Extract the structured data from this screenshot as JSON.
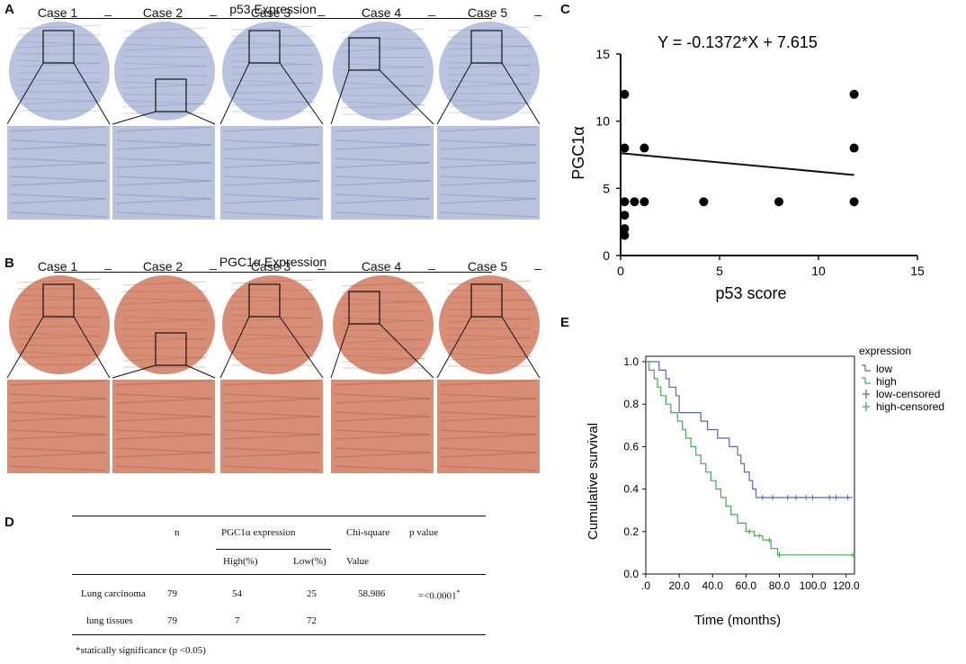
{
  "panels": {
    "a_label": "A",
    "b_label": "B",
    "c_label": "C",
    "d_label": "D",
    "e_label": "E"
  },
  "panel_a": {
    "title": "p53  Expression",
    "cases": [
      "Case 1",
      "Case 2",
      "Case 3",
      "Case 4",
      "Case 5"
    ],
    "stain_color": "#b9c3de"
  },
  "panel_b": {
    "title": "PGC1α Expression",
    "cases": [
      "Case 1",
      "Case 2",
      "Case 3",
      "Case 4",
      "Case 5"
    ],
    "stain_color": "#d88e76"
  },
  "chart_data": [
    {
      "id": "C",
      "type": "scatter",
      "title": "Y = -0.1372*X + 7.615",
      "xlabel": "p53 score",
      "ylabel": "PGC1α",
      "xlim": [
        0,
        15
      ],
      "ylim": [
        0,
        15
      ],
      "xticks": [
        0,
        5,
        10,
        15
      ],
      "yticks": [
        0,
        5,
        10,
        15
      ],
      "points": [
        [
          0.2,
          12
        ],
        [
          0.2,
          8
        ],
        [
          0.2,
          4
        ],
        [
          0.2,
          3
        ],
        [
          0.2,
          2
        ],
        [
          0.2,
          1.5
        ],
        [
          0.7,
          4
        ],
        [
          1.2,
          8
        ],
        [
          1.2,
          4
        ],
        [
          4.2,
          4
        ],
        [
          8,
          4
        ],
        [
          11.8,
          12
        ],
        [
          11.8,
          8
        ],
        [
          11.8,
          4
        ]
      ],
      "regression": {
        "slope": -0.1372,
        "intercept": 7.615,
        "x_range": [
          0,
          11.8
        ]
      }
    },
    {
      "id": "E",
      "type": "line",
      "xlabel": "Time (months)",
      "ylabel": "Cumulative survival",
      "xlim": [
        0,
        125
      ],
      "ylim": [
        0,
        1.0
      ],
      "xtick_labels": [
        ".0",
        "20.0",
        "40.0",
        "60.0",
        "80.0",
        "100.0",
        "120.0"
      ],
      "xtick_values": [
        0,
        20,
        40,
        60,
        80,
        100,
        120
      ],
      "ytick_labels": [
        "0.0",
        "0.2",
        "0.4",
        "0.6",
        "0.8",
        "1.0"
      ],
      "ytick_values": [
        0,
        0.2,
        0.4,
        0.6,
        0.8,
        1.0
      ],
      "legend_title": "expression",
      "legend": [
        {
          "label": "low",
          "style": "step",
          "color": "#5566bb"
        },
        {
          "label": "high",
          "style": "step",
          "color": "#44aa55"
        },
        {
          "label": "low-censored",
          "style": "cross",
          "color": "#5566bb"
        },
        {
          "label": "high-censored",
          "style": "cross",
          "color": "#44aa55"
        }
      ],
      "series": [
        {
          "name": "low",
          "color": "#5566bb",
          "steps": [
            [
              0,
              1.0
            ],
            [
              8,
              1.0
            ],
            [
              8,
              0.96
            ],
            [
              12,
              0.96
            ],
            [
              12,
              0.92
            ],
            [
              14,
              0.92
            ],
            [
              14,
              0.88
            ],
            [
              18,
              0.88
            ],
            [
              18,
              0.84
            ],
            [
              20,
              0.84
            ],
            [
              20,
              0.76
            ],
            [
              33,
              0.76
            ],
            [
              33,
              0.72
            ],
            [
              37,
              0.72
            ],
            [
              37,
              0.68
            ],
            [
              43,
              0.68
            ],
            [
              43,
              0.64
            ],
            [
              50,
              0.64
            ],
            [
              50,
              0.6
            ],
            [
              55,
              0.6
            ],
            [
              55,
              0.56
            ],
            [
              57,
              0.56
            ],
            [
              57,
              0.52
            ],
            [
              59,
              0.52
            ],
            [
              59,
              0.48
            ],
            [
              62,
              0.48
            ],
            [
              62,
              0.44
            ],
            [
              64,
              0.44
            ],
            [
              64,
              0.4
            ],
            [
              66,
              0.4
            ],
            [
              66,
              0.36
            ],
            [
              124,
              0.36
            ]
          ],
          "censored": [
            [
              70,
              0.36
            ],
            [
              76,
              0.36
            ],
            [
              85,
              0.36
            ],
            [
              90,
              0.36
            ],
            [
              96,
              0.36
            ],
            [
              100,
              0.36
            ],
            [
              110,
              0.36
            ],
            [
              114,
              0.36
            ],
            [
              121,
              0.36
            ]
          ]
        },
        {
          "name": "high",
          "color": "#44aa55",
          "steps": [
            [
              0,
              1.0
            ],
            [
              2,
              1.0
            ],
            [
              2,
              0.96
            ],
            [
              5,
              0.96
            ],
            [
              5,
              0.92
            ],
            [
              7,
              0.92
            ],
            [
              7,
              0.88
            ],
            [
              9,
              0.88
            ],
            [
              9,
              0.84
            ],
            [
              12,
              0.84
            ],
            [
              12,
              0.8
            ],
            [
              15,
              0.8
            ],
            [
              15,
              0.76
            ],
            [
              19,
              0.76
            ],
            [
              19,
              0.72
            ],
            [
              22,
              0.72
            ],
            [
              22,
              0.68
            ],
            [
              24,
              0.68
            ],
            [
              24,
              0.64
            ],
            [
              27,
              0.64
            ],
            [
              27,
              0.6
            ],
            [
              30,
              0.6
            ],
            [
              30,
              0.56
            ],
            [
              33,
              0.56
            ],
            [
              33,
              0.52
            ],
            [
              36,
              0.52
            ],
            [
              36,
              0.48
            ],
            [
              39,
              0.48
            ],
            [
              39,
              0.44
            ],
            [
              42,
              0.44
            ],
            [
              42,
              0.4
            ],
            [
              45,
              0.4
            ],
            [
              45,
              0.36
            ],
            [
              48,
              0.36
            ],
            [
              48,
              0.32
            ],
            [
              51,
              0.32
            ],
            [
              51,
              0.28
            ],
            [
              55,
              0.28
            ],
            [
              55,
              0.24
            ],
            [
              60,
              0.24
            ],
            [
              60,
              0.2
            ],
            [
              65,
              0.2
            ],
            [
              65,
              0.18
            ],
            [
              70,
              0.18
            ],
            [
              70,
              0.16
            ],
            [
              75,
              0.16
            ],
            [
              75,
              0.12
            ],
            [
              79,
              0.12
            ],
            [
              79,
              0.09
            ],
            [
              124,
              0.09
            ]
          ],
          "censored": [
            [
              62,
              0.2
            ],
            [
              68,
              0.18
            ],
            [
              74,
              0.16
            ],
            [
              80,
              0.09
            ],
            [
              124,
              0.09
            ]
          ]
        }
      ]
    }
  ],
  "table": {
    "header": {
      "n": "n",
      "pgc": "PGC1α   expression",
      "chi": "Chi-square",
      "p": "p value",
      "high": "High(%)",
      "low": "Low(%)",
      "value": "Value"
    },
    "rows": [
      {
        "name": "Lung carcinoma",
        "n": "79",
        "high": "54",
        "low": "25",
        "chi": "58.986",
        "p": "=<0.0001",
        "sup": "*"
      },
      {
        "name": "lung tissues",
        "n": "79",
        "high": "7",
        "low": "72",
        "chi": "",
        "p": "",
        "sup": ""
      }
    ],
    "footnote": "*statically significance (p <0.05)"
  }
}
